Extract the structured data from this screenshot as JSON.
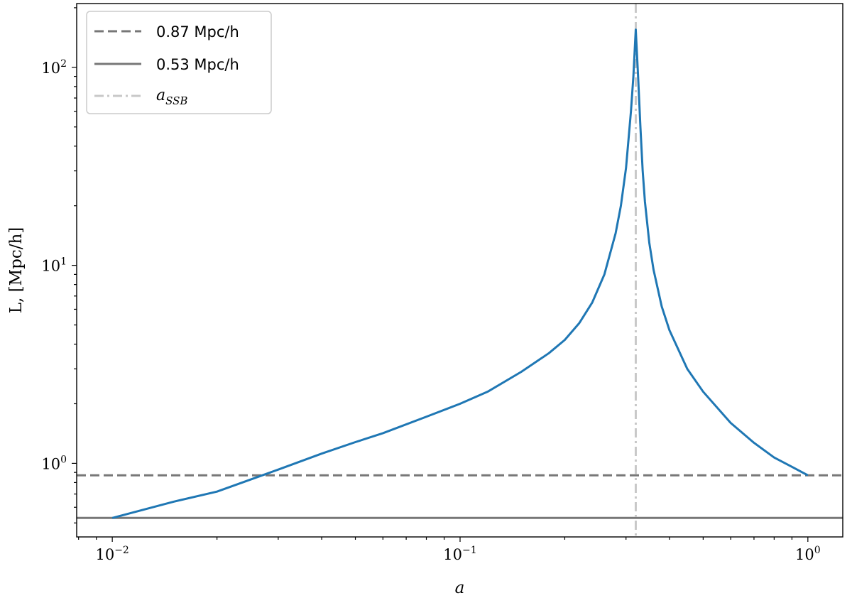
{
  "chart_data": {
    "type": "line",
    "xlabel": "a",
    "ylabel": "L, [Mpc/h]",
    "xscale": "log",
    "yscale": "log",
    "xlim": [
      0.0079,
      1.26
    ],
    "ylim": [
      0.425,
      210
    ],
    "x_ticks": [
      {
        "value": 0.01,
        "base": "10",
        "exp": "−2"
      },
      {
        "value": 0.1,
        "base": "10",
        "exp": "−1"
      },
      {
        "value": 1,
        "base": "10",
        "exp": "0"
      }
    ],
    "y_ticks": [
      {
        "value": 1,
        "base": "10",
        "exp": "0"
      },
      {
        "value": 10,
        "base": "10",
        "exp": "1"
      },
      {
        "value": 100,
        "base": "10",
        "exp": "2"
      }
    ],
    "grid": false,
    "legend_position": "top-left",
    "series": [
      {
        "color": "#1f77b4",
        "style": "solid",
        "x": [
          0.01,
          0.015,
          0.02,
          0.03,
          0.04,
          0.05,
          0.06,
          0.08,
          0.1,
          0.12,
          0.15,
          0.18,
          0.2,
          0.22,
          0.24,
          0.26,
          0.28,
          0.29,
          0.3,
          0.31,
          0.315,
          0.32,
          0.325,
          0.33,
          0.335,
          0.34,
          0.35,
          0.36,
          0.38,
          0.4,
          0.45,
          0.5,
          0.6,
          0.7,
          0.8,
          0.9,
          1.0
        ],
        "y": [
          0.53,
          0.64,
          0.72,
          0.93,
          1.12,
          1.28,
          1.42,
          1.72,
          2.0,
          2.3,
          2.9,
          3.6,
          4.2,
          5.1,
          6.5,
          9.0,
          14.5,
          20.0,
          31.0,
          60.0,
          90.0,
          155.0,
          90.0,
          50.0,
          30.0,
          21.0,
          13.0,
          9.5,
          6.2,
          4.7,
          3.0,
          2.3,
          1.6,
          1.27,
          1.07,
          0.96,
          0.87
        ]
      }
    ],
    "reference_lines": [
      {
        "orientation": "horizontal",
        "value": 0.87,
        "label": "0.87 Mpc/h",
        "color": "#777777",
        "style": "dashed"
      },
      {
        "orientation": "horizontal",
        "value": 0.53,
        "label": "0.53 Mpc/h",
        "color": "#777777",
        "style": "solid"
      },
      {
        "orientation": "vertical",
        "value": 0.32,
        "label_main": "a",
        "label_sub": "SSB",
        "color": "#c8c8c8",
        "style": "dashdot"
      }
    ]
  }
}
